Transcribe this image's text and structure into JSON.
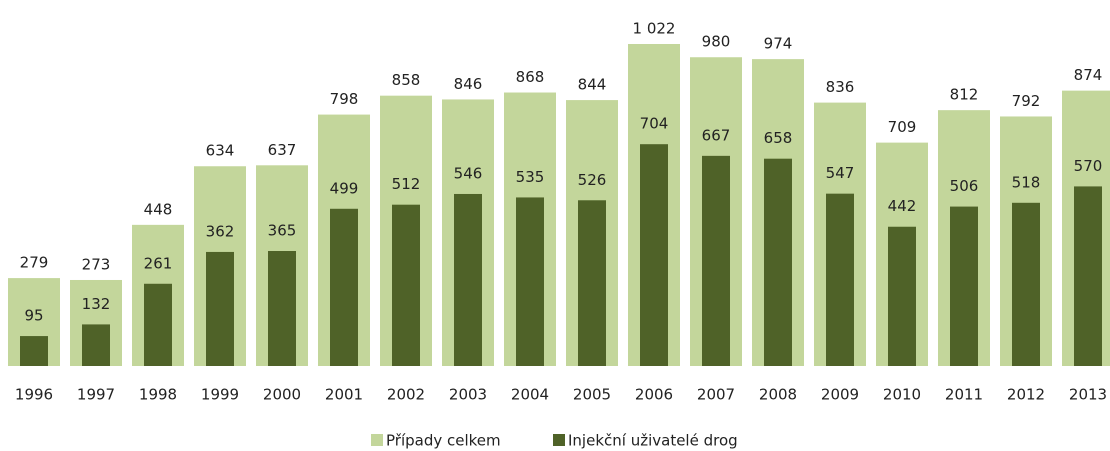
{
  "chart_data": {
    "type": "bar",
    "categories": [
      "1996",
      "1997",
      "1998",
      "1999",
      "2000",
      "2001",
      "2002",
      "2003",
      "2004",
      "2005",
      "2006",
      "2007",
      "2008",
      "2009",
      "2010",
      "2011",
      "2012",
      "2013"
    ],
    "series": [
      {
        "name": "Případy celkem",
        "color": "#c3d69b",
        "values": [
          279,
          273,
          448,
          634,
          637,
          798,
          858,
          846,
          868,
          844,
          1022,
          980,
          974,
          836,
          709,
          812,
          792,
          874
        ],
        "value_labels": [
          "279",
          "273",
          "448",
          "634",
          "637",
          "798",
          "858",
          "846",
          "868",
          "844",
          "1 022",
          "980",
          "974",
          "836",
          "709",
          "812",
          "792",
          "874"
        ]
      },
      {
        "name": "Injekční uživatelé drog",
        "color": "#4f6228",
        "values": [
          95,
          132,
          261,
          362,
          365,
          499,
          512,
          546,
          535,
          526,
          704,
          667,
          658,
          547,
          442,
          506,
          518,
          570
        ]
      }
    ]
  }
}
